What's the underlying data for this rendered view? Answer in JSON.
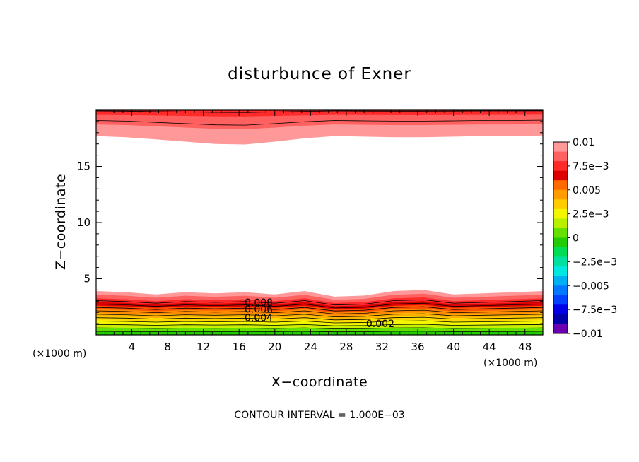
{
  "chart_data": {
    "type": "heatmap",
    "title": "disturbunce of Exner",
    "xlabel": "X−coordinate",
    "ylabel": "Z−coordinate",
    "x_unit": "(×1000 m)",
    "y_unit": "(×1000 m)",
    "xlim": [
      0,
      50
    ],
    "ylim": [
      0,
      20
    ],
    "x_ticks": [
      4,
      8,
      12,
      16,
      20,
      24,
      28,
      32,
      36,
      40,
      44,
      48
    ],
    "y_ticks": [
      5,
      10,
      15
    ],
    "colorbar": {
      "range": [
        -0.01,
        0.01
      ],
      "tick_labels": [
        "0.01",
        "7.5e−3",
        "0.005",
        "2.5e−3",
        "0",
        "−2.5e−3",
        "−0.005",
        "−7.5e−3",
        "−0.01"
      ],
      "colors": [
        "#ff9999",
        "#ff6060",
        "#ff2a2a",
        "#dd0000",
        "#ff6a00",
        "#ff9c00",
        "#ffcc00",
        "#f5f500",
        "#b8f000",
        "#66e000",
        "#22cc00",
        "#00dd55",
        "#00e0a0",
        "#00e8e0",
        "#00b0f0",
        "#0078ff",
        "#0040ff",
        "#0000e6",
        "#0000aa",
        "#6a00b0"
      ]
    },
    "contour_interval": "CONTOUR INTERVAL = 1.000E−03",
    "contour_labels": [
      {
        "text": "0.008",
        "x": 18.2,
        "z": 2.9
      },
      {
        "text": "0.006",
        "x": 18.2,
        "z": 2.3
      },
      {
        "text": "0.004",
        "x": 18.2,
        "z": 1.55
      },
      {
        "text": "0.002",
        "x": 31.8,
        "z": 1.0
      }
    ],
    "bottom_layer_top_z": [
      3.9,
      3.8,
      3.6,
      3.8,
      3.7,
      3.8,
      3.6,
      3.9,
      3.4,
      3.5,
      3.9,
      4.0,
      3.6,
      3.7,
      3.8,
      3.9
    ],
    "top_layer_bottom_z": [
      17.7,
      17.6,
      17.4,
      17.2,
      17.0,
      16.95,
      17.2,
      17.5,
      17.7,
      17.65,
      17.6,
      17.6,
      17.65,
      17.7,
      17.7,
      17.75
    ]
  }
}
